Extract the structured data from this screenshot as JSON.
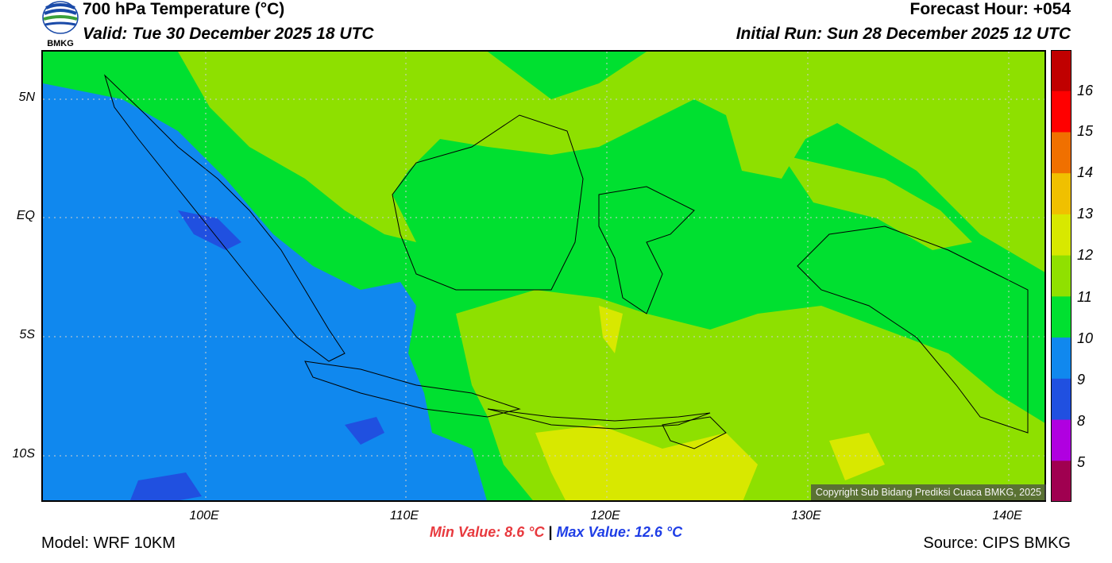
{
  "header": {
    "logo_text": "BMKG",
    "title": "700 hPa Temperature (°C)",
    "valid": "Valid: Tue 30 December 2025 18 UTC",
    "forecast_hour": "Forecast Hour: +054",
    "initial_run": "Initial Run: Sun 28 December 2025 12 UTC"
  },
  "map": {
    "lat_labels": [
      "5N",
      "EQ",
      "5S",
      "10S"
    ],
    "lon_labels": [
      "100E",
      "110E",
      "120E",
      "130E",
      "140E"
    ],
    "copyright": "Copyright Sub Bidang Prediksi Cuaca BMKG, 2025"
  },
  "colorbar": {
    "labels": [
      "16",
      "15",
      "14",
      "13",
      "12",
      "11",
      "10",
      "9",
      "8",
      "5"
    ],
    "colors": [
      "#c00000",
      "#ff0000",
      "#f07000",
      "#f0c000",
      "#d8e800",
      "#90e000",
      "#00e030",
      "#1088ee",
      "#2050e0",
      "#b000e0",
      "#a00050"
    ]
  },
  "stats": {
    "min": "Min Value: 8.6 °C",
    "separator": "|",
    "max": "Max Value: 12.6 °C"
  },
  "footer": {
    "model": "Model: WRF 10KM",
    "source": "Source: CIPS BMKG"
  }
}
